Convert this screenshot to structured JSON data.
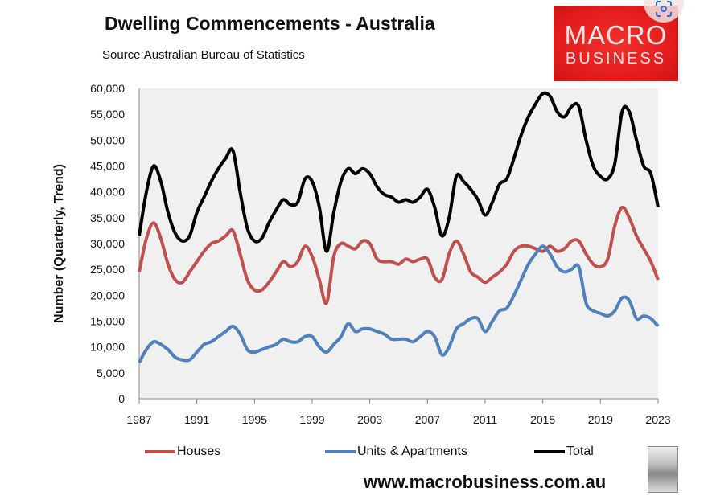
{
  "header": {
    "title": "Dwelling Commencements - Australia",
    "source": "Source:Australian Bureau of Statistics",
    "logo_line1": "MACRO",
    "logo_line2": "BUSINESS"
  },
  "footer": {
    "website": "www.macrobusiness.com.au"
  },
  "chart_data": {
    "type": "line",
    "title": "Dwelling Commencements - Australia",
    "xlabel": "",
    "ylabel": "Number (Quarterly, Trend)",
    "xlim": [
      1987,
      2023
    ],
    "ylim": [
      0,
      60000
    ],
    "x_ticks": [
      1987,
      1991,
      1995,
      1999,
      2003,
      2007,
      2011,
      2015,
      2019,
      2023
    ],
    "y_ticks": [
      0,
      5000,
      10000,
      15000,
      20000,
      25000,
      30000,
      35000,
      40000,
      45000,
      50000,
      55000,
      60000
    ],
    "y_tick_labels": [
      "0",
      "5,000",
      "10,000",
      "15,000",
      "20,000",
      "25,000",
      "30,000",
      "35,000",
      "40,000",
      "45,000",
      "50,000",
      "55,000",
      "60,000"
    ],
    "grid": false,
    "legend_position": "bottom",
    "x": [
      1987,
      1987.5,
      1988,
      1988.5,
      1989,
      1989.5,
      1990,
      1990.5,
      1991,
      1991.5,
      1992,
      1992.5,
      1993,
      1993.5,
      1994,
      1994.5,
      1995,
      1995.5,
      1996,
      1996.5,
      1997,
      1997.5,
      1998,
      1998.5,
      1999,
      1999.5,
      2000,
      2000.5,
      2001,
      2001.5,
      2002,
      2002.5,
      2003,
      2003.5,
      2004,
      2004.5,
      2005,
      2005.5,
      2006,
      2006.5,
      2007,
      2007.5,
      2008,
      2008.5,
      2009,
      2009.5,
      2010,
      2010.5,
      2011,
      2011.5,
      2012,
      2012.5,
      2013,
      2013.5,
      2014,
      2014.5,
      2015,
      2015.5,
      2016,
      2016.5,
      2017,
      2017.5,
      2018,
      2018.5,
      2019,
      2019.5,
      2020,
      2020.5,
      2021,
      2021.5,
      2022,
      2022.5,
      2023
    ],
    "series": [
      {
        "name": "Houses",
        "color": "#c0504d",
        "values": [
          24500,
          31000,
          34000,
          31000,
          26000,
          23000,
          22500,
          24500,
          26500,
          28500,
          30000,
          30500,
          31500,
          32500,
          28000,
          23000,
          21000,
          21000,
          22500,
          24500,
          26500,
          25500,
          26500,
          29500,
          27500,
          23000,
          18500,
          27500,
          30000,
          29500,
          29000,
          30500,
          30000,
          27000,
          26500,
          26500,
          26000,
          27000,
          26500,
          27000,
          27000,
          23500,
          23000,
          28000,
          30500,
          28000,
          24500,
          23500,
          22500,
          23500,
          24500,
          26000,
          28500,
          29500,
          29500,
          29000,
          28500,
          29500,
          28500,
          29000,
          30500,
          30500,
          28000,
          26000,
          25500,
          27000,
          33500,
          37000,
          35000,
          31500,
          29000,
          26500,
          23000
        ]
      },
      {
        "name": "Units & Apartments",
        "color": "#4f81bd",
        "values": [
          7000,
          9500,
          11000,
          10500,
          9500,
          8000,
          7500,
          7500,
          9000,
          10500,
          11000,
          12000,
          13000,
          14000,
          12500,
          9500,
          9000,
          9500,
          10000,
          10500,
          11500,
          11000,
          11000,
          12000,
          12000,
          10000,
          9000,
          10500,
          12000,
          14500,
          13000,
          13500,
          13500,
          13000,
          12500,
          11500,
          11500,
          11500,
          11000,
          12000,
          13000,
          12000,
          8500,
          10000,
          13500,
          14500,
          15500,
          15500,
          13000,
          15000,
          17000,
          17500,
          20000,
          23000,
          26000,
          28000,
          29500,
          28000,
          25500,
          24500,
          25000,
          25500,
          18500,
          17000,
          16500,
          16000,
          17000,
          19500,
          19000,
          15500,
          16000,
          15500,
          14000
        ]
      },
      {
        "name": "Total",
        "color": "#000000",
        "values": [
          31500,
          40000,
          45000,
          42000,
          36000,
          32000,
          30500,
          31500,
          36000,
          39000,
          42000,
          44500,
          46500,
          48000,
          40000,
          33000,
          30500,
          31000,
          34000,
          36500,
          38500,
          37500,
          38000,
          42500,
          42000,
          37000,
          28500,
          36000,
          42000,
          44500,
          43500,
          44500,
          43500,
          41000,
          39500,
          39000,
          38000,
          38500,
          38000,
          39000,
          40500,
          37000,
          31500,
          35000,
          43000,
          42000,
          40500,
          38500,
          35500,
          38000,
          41500,
          42500,
          46500,
          51000,
          54500,
          57000,
          59000,
          58500,
          55500,
          54500,
          56500,
          56500,
          50000,
          45000,
          43000,
          42500,
          45500,
          55500,
          55500,
          50000,
          45000,
          43500,
          37000
        ]
      }
    ]
  }
}
